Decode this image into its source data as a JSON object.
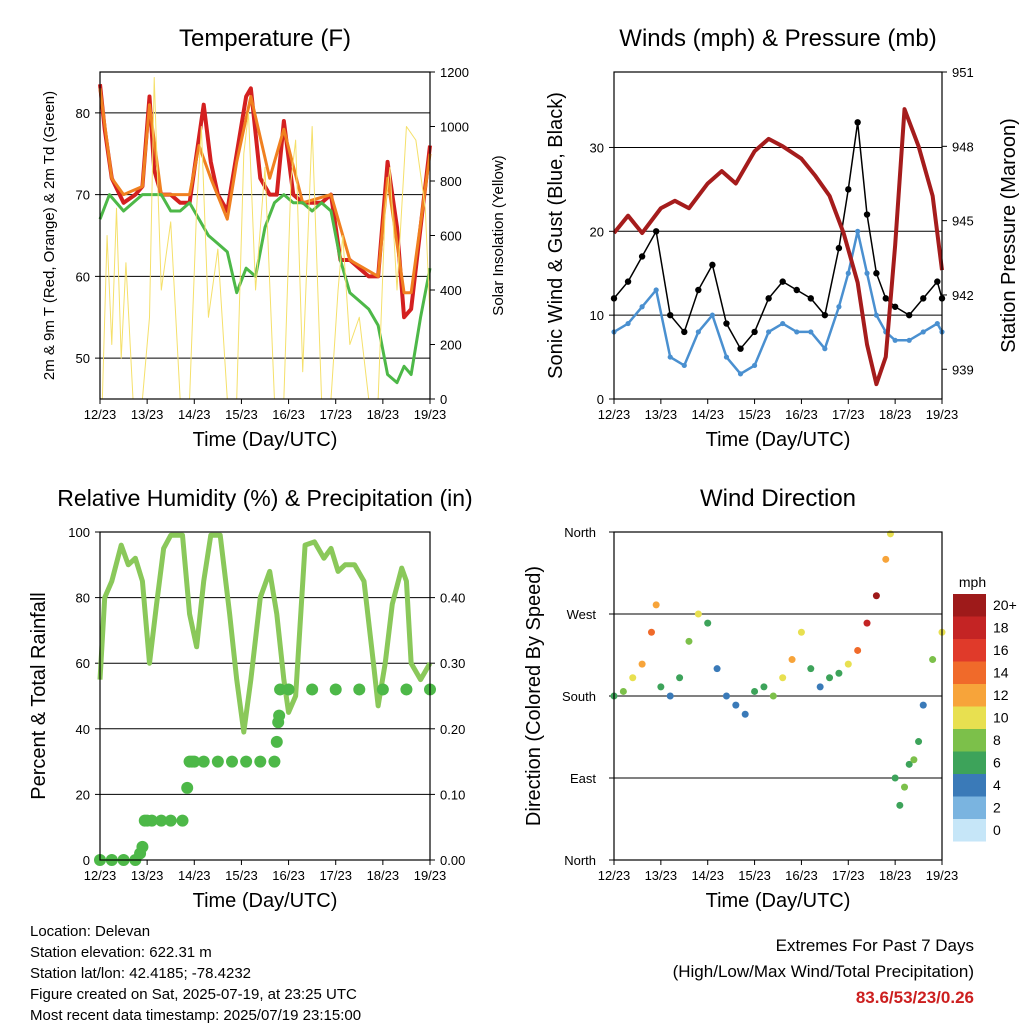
{
  "days": [
    "12/23",
    "13/23",
    "14/23",
    "15/23",
    "16/23",
    "17/23",
    "18/23",
    "19/23"
  ],
  "info": {
    "location": "Location: Delevan",
    "elevation": "Station elevation: 622.31 m",
    "latlon": "Station lat/lon: 42.4185; -78.4232",
    "created": "Figure created on Sat, 2025-07-19, at 23:25 UTC",
    "timestamp": "Most recent data timestamp: 2025/07/19 23:15:00"
  },
  "extremes": {
    "title": "Extremes For Past 7 Days",
    "subtitle": "(High/Low/Max Wind/Total Precipitation)",
    "values": "83.6/53/23/0.26",
    "color": "#cc1f1f"
  },
  "colorbar": {
    "title": "mph",
    "labels": [
      "20+",
      "18",
      "16",
      "14",
      "12",
      "10",
      "8",
      "6",
      "4",
      "2",
      "0"
    ],
    "colors": [
      "#9e1a1a",
      "#c42424",
      "#e03a2a",
      "#f06a2a",
      "#f7a43a",
      "#e8e050",
      "#7cc04a",
      "#3da35a",
      "#3a7ab8",
      "#7ab4e0",
      "#c6e6f8"
    ]
  },
  "chart_data": [
    {
      "type": "line",
      "title": "Temperature (F)",
      "xlabel": "Time (Day/UTC)",
      "ylabel": "2m & 9m T (Red, Orange) & 2m Td (Green)",
      "ylabel_right": "Solar Insolation (Yellow)",
      "x_ticks": [
        "12/23",
        "13/23",
        "14/23",
        "15/23",
        "16/23",
        "17/23",
        "18/23",
        "19/23"
      ],
      "ylim": [
        45,
        85
      ],
      "yticks": [
        50,
        60,
        70,
        80
      ],
      "ylim_right": [
        0,
        1200
      ],
      "yticks_right": [
        0,
        200,
        400,
        600,
        800,
        1000,
        1200
      ],
      "grid": true,
      "series": [
        {
          "name": "2m T",
          "color": "#d42020",
          "x": [
            0,
            0.1,
            0.25,
            0.5,
            0.75,
            0.9,
            1.05,
            1.15,
            1.3,
            1.5,
            1.7,
            1.9,
            2.1,
            2.2,
            2.35,
            2.5,
            2.7,
            2.9,
            3.1,
            3.2,
            3.4,
            3.6,
            3.75,
            3.9,
            4.1,
            4.3,
            4.5,
            4.7,
            4.9,
            5.1,
            5.3,
            5.5,
            5.7,
            5.9,
            6.1,
            6.3,
            6.45,
            6.6,
            6.8,
            7.0
          ],
          "y": [
            83.5,
            78,
            72,
            69,
            70,
            71,
            82,
            73,
            70,
            70,
            69,
            69,
            77,
            81,
            74,
            70,
            68,
            75,
            82,
            83,
            72,
            70,
            70,
            79,
            70,
            69,
            69,
            69,
            70,
            62,
            62,
            61,
            60,
            60,
            74,
            66,
            55,
            56,
            66,
            76
          ]
        },
        {
          "name": "9m T",
          "color": "#f08020",
          "x": [
            0,
            0.25,
            0.5,
            0.9,
            1.05,
            1.3,
            1.9,
            2.1,
            2.35,
            2.7,
            2.9,
            3.2,
            3.6,
            3.9,
            4.3,
            4.9,
            5.3,
            5.9,
            6.1,
            6.45,
            6.6,
            7.0
          ],
          "y": [
            83,
            72,
            70,
            71,
            81,
            70,
            70,
            76,
            72,
            67,
            74,
            82,
            72,
            78,
            69,
            70,
            62,
            60,
            72,
            58,
            58,
            75
          ]
        },
        {
          "name": "2m Td",
          "color": "#4db848",
          "x": [
            0,
            0.2,
            0.5,
            0.9,
            1.1,
            1.3,
            1.5,
            1.7,
            1.9,
            2.1,
            2.3,
            2.5,
            2.7,
            2.9,
            3.1,
            3.3,
            3.5,
            3.7,
            3.9,
            4.1,
            4.3,
            4.5,
            4.7,
            4.9,
            5.1,
            5.3,
            5.5,
            5.7,
            5.9,
            6.1,
            6.3,
            6.45,
            6.6,
            6.8,
            7.0
          ],
          "y": [
            67,
            70,
            68,
            70,
            70,
            70,
            68,
            68,
            69,
            67,
            65,
            64,
            63,
            58,
            61,
            60,
            66,
            69,
            70,
            69,
            69,
            68,
            69,
            68,
            62,
            58,
            57,
            56,
            54,
            48,
            47,
            49,
            48,
            55,
            61
          ]
        },
        {
          "name": "Solar Insolation",
          "axis": "right",
          "color": "#f5e06a",
          "x": [
            0.05,
            0.15,
            0.25,
            0.35,
            0.45,
            0.55,
            0.7,
            0.9,
            1.05,
            1.15,
            1.3,
            1.5,
            1.7,
            1.9,
            2.05,
            2.15,
            2.3,
            2.5,
            2.7,
            2.9,
            3.05,
            3.15,
            3.3,
            3.5,
            3.7,
            3.9,
            4.05,
            4.15,
            4.3,
            4.5,
            4.7,
            4.9,
            5.05,
            5.15,
            5.3,
            5.5,
            5.7,
            5.9,
            6.05,
            6.15,
            6.3,
            6.5,
            6.7,
            6.9,
            7.0
          ],
          "y": [
            0,
            600,
            200,
            700,
            150,
            500,
            0,
            0,
            300,
            1180,
            400,
            650,
            0,
            0,
            700,
            1000,
            300,
            550,
            0,
            0,
            900,
            1050,
            400,
            850,
            0,
            0,
            800,
            950,
            100,
            1000,
            0,
            0,
            400,
            600,
            200,
            300,
            0,
            0,
            700,
            850,
            400,
            1000,
            950,
            700,
            300
          ]
        }
      ]
    },
    {
      "type": "scatter",
      "title": "Winds (mph) & Pressure (mb)",
      "xlabel": "Time (Day/UTC)",
      "ylabel": "Sonic Wind & Gust (Blue, Black)",
      "ylabel_right": "Station Pressure (Maroon)",
      "x_ticks": [
        "12/23",
        "13/23",
        "14/23",
        "15/23",
        "16/23",
        "17/23",
        "18/23",
        "19/23"
      ],
      "ylim": [
        0,
        39
      ],
      "yticks": [
        0,
        10,
        20,
        30
      ],
      "ylim_right": [
        937.8,
        951
      ],
      "yticks_right": [
        939,
        942,
        945,
        948,
        951
      ],
      "grid": true,
      "series": [
        {
          "name": "Gust",
          "color": "#000000",
          "x": [
            0,
            0.3,
            0.6,
            0.9,
            1.2,
            1.5,
            1.8,
            2.1,
            2.4,
            2.7,
            3.0,
            3.3,
            3.6,
            3.9,
            4.2,
            4.5,
            4.8,
            5.0,
            5.2,
            5.4,
            5.6,
            5.8,
            6.0,
            6.3,
            6.6,
            6.9,
            7.0
          ],
          "y": [
            12,
            14,
            17,
            20,
            10,
            8,
            13,
            16,
            9,
            6,
            8,
            12,
            14,
            13,
            12,
            10,
            18,
            25,
            33,
            22,
            15,
            12,
            11,
            10,
            12,
            14,
            12
          ]
        },
        {
          "name": "Wind",
          "color": "#4a90d0",
          "x": [
            0,
            0.3,
            0.6,
            0.9,
            1.2,
            1.5,
            1.8,
            2.1,
            2.4,
            2.7,
            3.0,
            3.3,
            3.6,
            3.9,
            4.2,
            4.5,
            4.8,
            5.0,
            5.2,
            5.4,
            5.6,
            5.8,
            6.0,
            6.3,
            6.6,
            6.9,
            7.0
          ],
          "y": [
            8,
            9,
            11,
            13,
            5,
            4,
            8,
            10,
            5,
            3,
            4,
            8,
            9,
            8,
            8,
            6,
            11,
            15,
            20,
            15,
            10,
            8,
            7,
            7,
            8,
            9,
            8
          ]
        },
        {
          "name": "Station Pressure",
          "axis": "right",
          "color": "#a51c1c",
          "x": [
            0,
            0.3,
            0.6,
            1.0,
            1.3,
            1.6,
            2.0,
            2.3,
            2.6,
            3.0,
            3.3,
            3.6,
            4.0,
            4.3,
            4.6,
            4.9,
            5.2,
            5.4,
            5.6,
            5.8,
            6.0,
            6.2,
            6.5,
            6.8,
            7.0
          ],
          "y": [
            944.5,
            945.2,
            944.5,
            945.5,
            945.8,
            945.5,
            946.5,
            947,
            946.5,
            947.8,
            948.3,
            948,
            947.5,
            946.8,
            946,
            944.5,
            942.5,
            940,
            938.4,
            939.5,
            944,
            949.5,
            948,
            946,
            943
          ]
        }
      ]
    },
    {
      "type": "line",
      "title": "Relative Humidity (%) & Precipitation (in)",
      "xlabel": "Time (Day/UTC)",
      "ylabel": "Percent & Total Rainfall",
      "x_ticks": [
        "12/23",
        "13/23",
        "14/23",
        "15/23",
        "16/23",
        "17/23",
        "18/23",
        "19/23"
      ],
      "ylim": [
        0,
        100
      ],
      "yticks": [
        0,
        20,
        40,
        60,
        80,
        100
      ],
      "ylim_right": [
        0,
        0.5
      ],
      "yticks_right": [
        "0.00",
        "0.10",
        "0.20",
        "0.30",
        "0.40"
      ],
      "grid": true,
      "series": [
        {
          "name": "Relative Humidity",
          "color": "#8ac85a",
          "x": [
            0,
            0.1,
            0.25,
            0.45,
            0.6,
            0.75,
            0.9,
            1.05,
            1.2,
            1.35,
            1.5,
            1.75,
            1.9,
            2.05,
            2.2,
            2.35,
            2.55,
            2.75,
            2.9,
            3.05,
            3.2,
            3.4,
            3.6,
            3.75,
            3.9,
            4.0,
            4.15,
            4.35,
            4.55,
            4.75,
            4.9,
            5.05,
            5.2,
            5.4,
            5.6,
            5.8,
            5.9,
            6.05,
            6.2,
            6.4,
            6.5,
            6.6,
            6.8,
            7.0
          ],
          "y": [
            55,
            80,
            85,
            96,
            90,
            92,
            85,
            60,
            78,
            95,
            99,
            99,
            75,
            65,
            85,
            99,
            99,
            75,
            55,
            39,
            55,
            80,
            88,
            75,
            55,
            45,
            50,
            96,
            97,
            92,
            95,
            88,
            90,
            90,
            85,
            60,
            47,
            60,
            78,
            89,
            85,
            60,
            55,
            60
          ]
        },
        {
          "name": "Total Precipitation",
          "axis": "right",
          "color": "#4db848",
          "x": [
            0,
            0.25,
            0.5,
            0.75,
            0.85,
            0.9,
            0.95,
            1.0,
            1.1,
            1.3,
            1.5,
            1.75,
            1.85,
            1.9,
            1.95,
            2.0,
            2.2,
            2.5,
            2.8,
            3.1,
            3.4,
            3.7,
            3.75,
            3.78,
            3.8,
            3.82,
            4.0,
            4.5,
            5.0,
            5.5,
            6.0,
            6.5,
            7.0
          ],
          "y": [
            0,
            0,
            0,
            0,
            0.01,
            0.02,
            0.06,
            0.06,
            0.06,
            0.06,
            0.06,
            0.06,
            0.11,
            0.15,
            0.15,
            0.15,
            0.15,
            0.15,
            0.15,
            0.15,
            0.15,
            0.15,
            0.18,
            0.21,
            0.22,
            0.26,
            0.26,
            0.26,
            0.26,
            0.26,
            0.26,
            0.26,
            0.26
          ]
        }
      ]
    },
    {
      "type": "scatter",
      "title": "Wind Direction",
      "xlabel": "Time (Day/UTC)",
      "ylabel": "Direction (Colored By Speed)",
      "x_ticks": [
        "12/23",
        "13/23",
        "14/23",
        "15/23",
        "16/23",
        "17/23",
        "18/23",
        "19/23"
      ],
      "ylim": [
        0,
        360
      ],
      "yticks": [
        "North",
        "East",
        "South",
        "West",
        "North"
      ],
      "grid": true,
      "series": [
        {
          "name": "Wind Direction",
          "x": [
            0,
            0.2,
            0.4,
            0.6,
            0.8,
            0.9,
            1.0,
            1.2,
            1.4,
            1.6,
            1.8,
            2.0,
            2.2,
            2.4,
            2.6,
            2.8,
            3.0,
            3.2,
            3.4,
            3.6,
            3.8,
            4.0,
            4.2,
            4.4,
            4.6,
            4.8,
            5.0,
            5.2,
            5.4,
            5.6,
            5.8,
            5.9,
            6.0,
            6.1,
            6.2,
            6.3,
            6.4,
            6.5,
            6.6,
            6.8,
            7.0
          ],
          "y": [
            180,
            185,
            200,
            215,
            250,
            280,
            190,
            180,
            200,
            240,
            270,
            260,
            210,
            180,
            170,
            160,
            185,
            190,
            180,
            200,
            220,
            250,
            210,
            190,
            200,
            205,
            215,
            230,
            260,
            290,
            330,
            358,
            90,
            60,
            80,
            105,
            110,
            130,
            170,
            220,
            250
          ],
          "speed": [
            6,
            8,
            10,
            12,
            14,
            12,
            6,
            4,
            6,
            8,
            10,
            6,
            4,
            3,
            4,
            4,
            6,
            6,
            8,
            10,
            12,
            10,
            6,
            4,
            6,
            6,
            10,
            14,
            18,
            20,
            12,
            10,
            6,
            6,
            8,
            6,
            8,
            6,
            4,
            8,
            10
          ]
        }
      ]
    }
  ]
}
